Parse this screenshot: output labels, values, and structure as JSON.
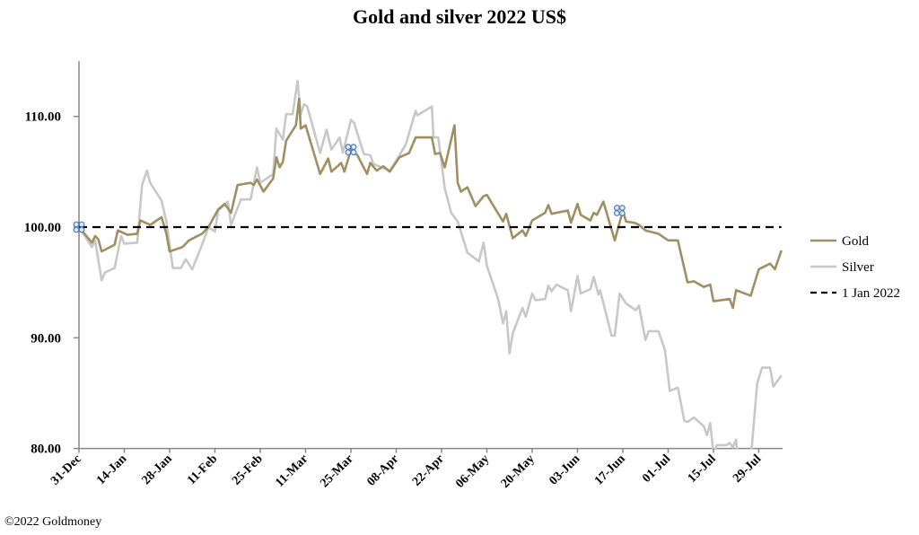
{
  "chart_data": {
    "type": "line",
    "title": "Gold and silver 2022  US$",
    "xlabel": "",
    "ylabel": "",
    "x_unit": "days since 31-Dec-2021",
    "ylim": [
      80,
      115
    ],
    "yticks": [
      {
        "value": 80,
        "label": "80.00"
      },
      {
        "value": 90,
        "label": "90.00"
      },
      {
        "value": 100,
        "label": "100.00"
      },
      {
        "value": 110,
        "label": "110.00"
      }
    ],
    "xticks": [
      {
        "day": 0,
        "label": "31-Dec"
      },
      {
        "day": 14,
        "label": "14-Jan"
      },
      {
        "day": 28,
        "label": "28-Jan"
      },
      {
        "day": 42,
        "label": "11-Feb"
      },
      {
        "day": 56,
        "label": "25-Feb"
      },
      {
        "day": 70,
        "label": "11-Mar"
      },
      {
        "day": 84,
        "label": "25-Mar"
      },
      {
        "day": 98,
        "label": "08-Apr"
      },
      {
        "day": 112,
        "label": "22-Apr"
      },
      {
        "day": 126,
        "label": "06-May"
      },
      {
        "day": 140,
        "label": "20-May"
      },
      {
        "day": 154,
        "label": "03-Jun"
      },
      {
        "day": 168,
        "label": "17-Jun"
      },
      {
        "day": 182,
        "label": "01-Jul"
      },
      {
        "day": 196,
        "label": "15-Jul"
      },
      {
        "day": 210,
        "label": "29-Jul"
      }
    ],
    "xlim": [
      0,
      217
    ],
    "grid": false,
    "legend_position": "right",
    "series": [
      {
        "name": "Gold",
        "color": "#a08f63",
        "style": "solid",
        "points": [
          [
            0,
            100.0
          ],
          [
            2,
            99.3
          ],
          [
            4,
            98.6
          ],
          [
            5,
            99.2
          ],
          [
            6,
            98.9
          ],
          [
            7,
            97.8
          ],
          [
            11,
            98.4
          ],
          [
            12,
            99.7
          ],
          [
            15,
            99.3
          ],
          [
            18,
            99.4
          ],
          [
            19,
            100.6
          ],
          [
            22,
            100.2
          ],
          [
            25.5,
            100.9
          ],
          [
            27,
            99.4
          ],
          [
            28,
            97.8
          ],
          [
            32,
            98.2
          ],
          [
            34,
            98.8
          ],
          [
            38,
            99.4
          ],
          [
            40,
            100.0
          ],
          [
            43,
            101.6
          ],
          [
            45,
            102.1
          ],
          [
            47,
            101.3
          ],
          [
            49,
            103.8
          ],
          [
            53,
            104.0
          ],
          [
            54,
            103.8
          ],
          [
            55,
            104.3
          ],
          [
            57,
            103.2
          ],
          [
            60,
            104.4
          ],
          [
            61,
            106.3
          ],
          [
            62,
            105.4
          ],
          [
            63,
            105.9
          ],
          [
            64,
            107.8
          ],
          [
            67,
            109.2
          ],
          [
            68,
            111.6
          ],
          [
            68.5,
            108.9
          ],
          [
            70,
            109.2
          ],
          [
            74.5,
            104.8
          ],
          [
            77,
            106.2
          ],
          [
            78,
            105.0
          ],
          [
            81,
            105.8
          ],
          [
            82,
            105.0
          ],
          [
            84,
            107.0
          ],
          [
            86,
            106.5
          ],
          [
            89,
            104.8
          ],
          [
            90,
            105.8
          ],
          [
            92,
            105.1
          ],
          [
            94,
            105.5
          ],
          [
            96,
            105.0
          ],
          [
            99,
            106.3
          ],
          [
            102,
            106.7
          ],
          [
            104,
            108.1
          ],
          [
            109,
            108.1
          ],
          [
            110,
            106.6
          ],
          [
            111.5,
            106.7
          ],
          [
            113,
            105.4
          ],
          [
            116,
            109.2
          ],
          [
            117,
            104.0
          ],
          [
            118,
            103.2
          ],
          [
            120,
            103.6
          ],
          [
            122.5,
            101.9
          ],
          [
            125,
            102.8
          ],
          [
            126,
            102.9
          ],
          [
            131,
            100.5
          ],
          [
            132,
            101.2
          ],
          [
            134,
            99.0
          ],
          [
            137,
            99.7
          ],
          [
            138,
            99.2
          ],
          [
            140,
            100.6
          ],
          [
            144,
            101.3
          ],
          [
            145,
            102.0
          ],
          [
            146,
            101.2
          ],
          [
            151,
            101.5
          ],
          [
            152,
            100.4
          ],
          [
            154,
            102.1
          ],
          [
            155,
            101.1
          ],
          [
            158,
            100.6
          ],
          [
            159,
            101.3
          ],
          [
            160,
            101.1
          ],
          [
            162,
            102.3
          ],
          [
            165.5,
            98.8
          ],
          [
            168,
            101.5
          ],
          [
            169,
            100.5
          ],
          [
            171.5,
            100.4
          ],
          [
            173,
            100.2
          ],
          [
            175,
            99.7
          ],
          [
            179,
            99.4
          ],
          [
            182,
            98.8
          ],
          [
            185,
            98.8
          ],
          [
            188,
            95.0
          ],
          [
            190,
            95.1
          ],
          [
            193,
            94.6
          ],
          [
            195,
            94.8
          ],
          [
            196,
            93.3
          ],
          [
            201,
            93.5
          ],
          [
            202,
            92.7
          ],
          [
            203,
            94.3
          ],
          [
            207.5,
            93.8
          ],
          [
            210,
            96.2
          ],
          [
            213.5,
            96.7
          ],
          [
            215,
            96.2
          ],
          [
            217,
            97.9
          ]
        ]
      },
      {
        "name": "Silver",
        "color": "#c8c8c8",
        "style": "solid",
        "points": [
          [
            0,
            100.0
          ],
          [
            4,
            98.2
          ],
          [
            5,
            98.8
          ],
          [
            7,
            95.2
          ],
          [
            8,
            95.9
          ],
          [
            11,
            96.3
          ],
          [
            13,
            99.2
          ],
          [
            14,
            98.5
          ],
          [
            18,
            98.6
          ],
          [
            19.5,
            103.8
          ],
          [
            21,
            105.1
          ],
          [
            22,
            104.0
          ],
          [
            25.5,
            102.4
          ],
          [
            27,
            100.5
          ],
          [
            29,
            96.3
          ],
          [
            31.5,
            96.3
          ],
          [
            33,
            97.1
          ],
          [
            35,
            96.2
          ],
          [
            38,
            98.4
          ],
          [
            40,
            100.0
          ],
          [
            42,
            99.6
          ],
          [
            43,
            101.5
          ],
          [
            46,
            102.3
          ],
          [
            47,
            100.2
          ],
          [
            50,
            102.5
          ],
          [
            53,
            102.5
          ],
          [
            55,
            105.4
          ],
          [
            56,
            104.0
          ],
          [
            60,
            104.8
          ],
          [
            61,
            108.9
          ],
          [
            63,
            107.9
          ],
          [
            64,
            110.2
          ],
          [
            66,
            110.2
          ],
          [
            67.5,
            113.2
          ],
          [
            68.5,
            110.2
          ],
          [
            69.5,
            111.1
          ],
          [
            70.5,
            110.9
          ],
          [
            74.5,
            106.7
          ],
          [
            76.5,
            108.8
          ],
          [
            78,
            107.0
          ],
          [
            80.5,
            108.1
          ],
          [
            81.5,
            106.7
          ],
          [
            84,
            109.7
          ],
          [
            85,
            109.4
          ],
          [
            88,
            106.6
          ],
          [
            90,
            106.5
          ],
          [
            91,
            105.7
          ],
          [
            96,
            105.1
          ],
          [
            99,
            106.5
          ],
          [
            101,
            107.5
          ],
          [
            104,
            110.5
          ],
          [
            104.5,
            110.1
          ],
          [
            109,
            110.9
          ],
          [
            109.5,
            108.1
          ],
          [
            111,
            108.1
          ],
          [
            113,
            103.5
          ],
          [
            115,
            101.3
          ],
          [
            117,
            100.5
          ],
          [
            120,
            97.7
          ],
          [
            123.5,
            96.9
          ],
          [
            125,
            98.6
          ],
          [
            126,
            96.5
          ],
          [
            129.5,
            93.5
          ],
          [
            131,
            91.3
          ],
          [
            132,
            92.4
          ],
          [
            133,
            88.6
          ],
          [
            134,
            90.4
          ],
          [
            137,
            92.7
          ],
          [
            138,
            91.9
          ],
          [
            140,
            94.0
          ],
          [
            141,
            93.4
          ],
          [
            144,
            93.5
          ],
          [
            145,
            94.7
          ],
          [
            146,
            94.2
          ],
          [
            147.5,
            94.8
          ],
          [
            151,
            94.3
          ],
          [
            152,
            92.4
          ],
          [
            154,
            95.6
          ],
          [
            155,
            94.0
          ],
          [
            158,
            94.4
          ],
          [
            159,
            95.5
          ],
          [
            160.5,
            93.9
          ],
          [
            161,
            94.3
          ],
          [
            164.5,
            90.2
          ],
          [
            165.5,
            90.2
          ],
          [
            167,
            94.0
          ],
          [
            169,
            93.1
          ],
          [
            172,
            92.5
          ],
          [
            173,
            92.9
          ],
          [
            175,
            89.8
          ],
          [
            176,
            90.6
          ],
          [
            179,
            90.6
          ],
          [
            181,
            88.9
          ],
          [
            182.5,
            85.2
          ],
          [
            185,
            85.5
          ],
          [
            187,
            82.5
          ],
          [
            188,
            82.4
          ],
          [
            190,
            82.8
          ],
          [
            193,
            82.0
          ],
          [
            194,
            81.2
          ],
          [
            195,
            82.3
          ],
          [
            196,
            79.5
          ],
          [
            197,
            80.3
          ],
          [
            200,
            80.3
          ],
          [
            201,
            80.5
          ],
          [
            202,
            80.1
          ],
          [
            203,
            80.8
          ],
          [
            203.5,
            79.0
          ],
          [
            205,
            78.5
          ],
          [
            207.5,
            79.0
          ],
          [
            209.5,
            85.9
          ],
          [
            211,
            87.3
          ],
          [
            213.5,
            87.3
          ],
          [
            214.5,
            85.6
          ],
          [
            217,
            86.6
          ]
        ]
      },
      {
        "name": "1 Jan 2022",
        "color": "#000000",
        "style": "dashed",
        "points": [
          [
            0,
            100
          ],
          [
            217,
            100
          ]
        ]
      }
    ],
    "markers": [
      {
        "day": 0,
        "value": 100.0,
        "icon": "selection-handle-icon"
      },
      {
        "day": 84,
        "value": 107.0,
        "icon": "selection-handle-icon"
      },
      {
        "day": 167,
        "value": 101.5,
        "icon": "selection-handle-icon"
      }
    ]
  },
  "footer": "©2022 Goldmoney"
}
